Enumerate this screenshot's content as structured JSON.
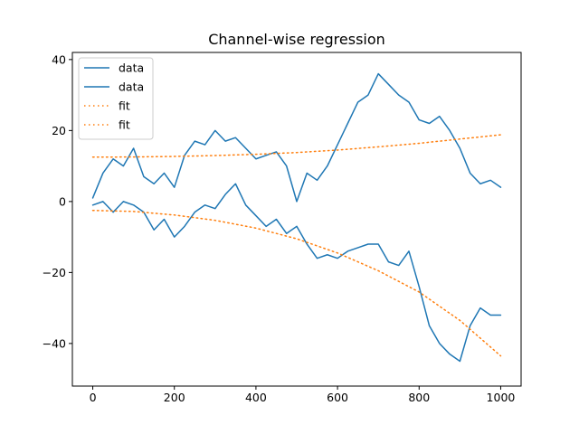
{
  "chart_data": {
    "type": "line",
    "title": "Channel-wise regression",
    "xlabel": "",
    "ylabel": "",
    "xlim": [
      -50,
      1050
    ],
    "ylim": [
      -52,
      42
    ],
    "xticks": [
      0,
      200,
      400,
      600,
      800,
      1000
    ],
    "yticks": [
      -40,
      -20,
      0,
      20,
      40
    ],
    "grid": false,
    "legend": "top-left",
    "colors": {
      "data": "#1f77b4",
      "fit": "#ff7f0e"
    },
    "series": [
      {
        "name": "data",
        "style": "solid",
        "x": [
          0,
          25,
          50,
          75,
          100,
          125,
          150,
          175,
          200,
          225,
          250,
          275,
          300,
          325,
          350,
          375,
          400,
          425,
          450,
          475,
          500,
          525,
          550,
          575,
          600,
          625,
          650,
          675,
          700,
          725,
          750,
          775,
          800,
          825,
          850,
          875,
          900,
          925,
          950,
          975,
          1000
        ],
        "values": [
          1,
          8,
          12,
          10,
          15,
          7,
          5,
          8,
          4,
          13,
          17,
          16,
          20,
          17,
          18,
          15,
          12,
          13,
          14,
          10,
          0,
          8,
          6,
          10,
          16,
          22,
          28,
          30,
          36,
          33,
          30,
          28,
          23,
          22,
          24,
          20,
          15,
          8,
          5,
          6,
          4
        ]
      },
      {
        "name": "data",
        "style": "solid",
        "x": [
          0,
          25,
          50,
          75,
          100,
          125,
          150,
          175,
          200,
          225,
          250,
          275,
          300,
          325,
          350,
          375,
          400,
          425,
          450,
          475,
          500,
          525,
          550,
          575,
          600,
          625,
          650,
          675,
          700,
          725,
          750,
          775,
          800,
          825,
          850,
          875,
          900,
          925,
          950,
          975,
          1000
        ],
        "values": [
          -1,
          0,
          -3,
          0,
          -1,
          -3,
          -8,
          -5,
          -10,
          -7,
          -3,
          -1,
          -2,
          2,
          5,
          -1,
          -4,
          -7,
          -5,
          -9,
          -7,
          -12,
          -16,
          -15,
          -16,
          -14,
          -13,
          -12,
          -12,
          -17,
          -18,
          -14,
          -24,
          -35,
          -40,
          -43,
          -45,
          -35,
          -30,
          -32,
          -32
        ]
      },
      {
        "name": "fit",
        "style": "dotted",
        "x": [
          0,
          100,
          200,
          300,
          400,
          500,
          600,
          700,
          800,
          900,
          1000
        ],
        "values": [
          12.5,
          12.55,
          12.7,
          12.95,
          13.3,
          13.8,
          14.5,
          15.4,
          16.4,
          17.6,
          18.8
        ]
      },
      {
        "name": "fit",
        "style": "dotted",
        "x": [
          0,
          100,
          200,
          300,
          400,
          500,
          600,
          700,
          800,
          900,
          1000
        ],
        "values": [
          -2.5,
          -2.8,
          -3.8,
          -5.3,
          -7.5,
          -10.5,
          -14.5,
          -19.5,
          -25.5,
          -33.5,
          -43.5
        ]
      }
    ]
  }
}
